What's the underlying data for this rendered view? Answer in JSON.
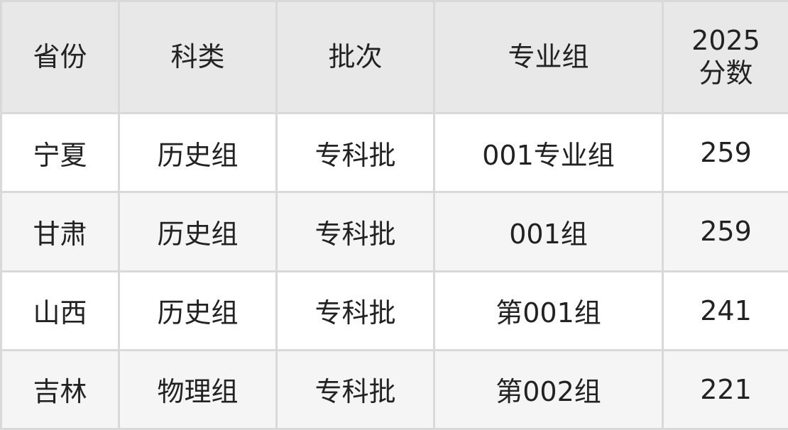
{
  "table": {
    "headers": [
      "省份",
      "科类",
      "批次",
      "专业组",
      "2025\n分数"
    ],
    "rows": [
      [
        "宁夏",
        "历史组",
        "专科批",
        "001专业组",
        "259"
      ],
      [
        "甘肃",
        "历史组",
        "专科批",
        "001组",
        "259"
      ],
      [
        "山西",
        "历史组",
        "专科批",
        "第001组",
        "241"
      ],
      [
        "吉林",
        "物理组",
        "专科批",
        "第002组",
        "221"
      ]
    ]
  }
}
